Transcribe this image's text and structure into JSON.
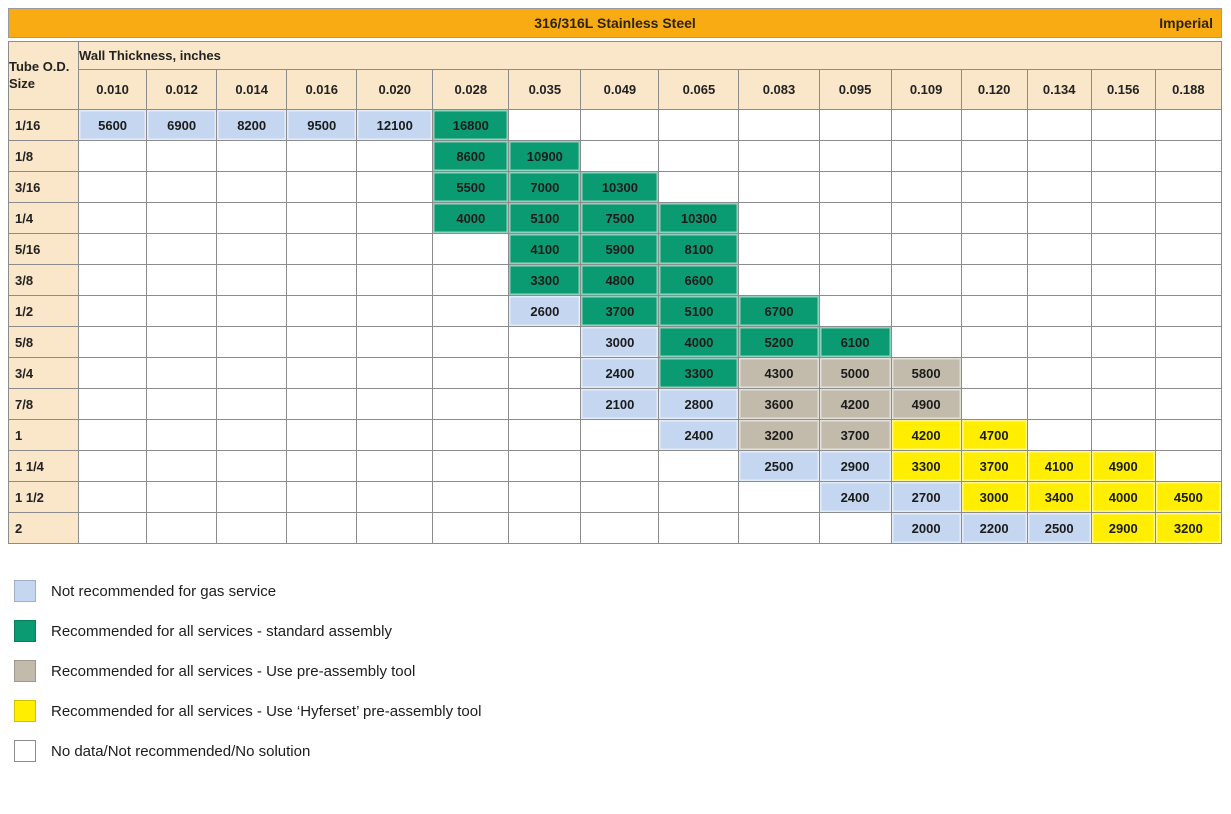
{
  "chart_data": {
    "type": "table",
    "title": "316/316L Stainless Steel",
    "units_label": "Imperial",
    "corner_label": "Tube O.D. Size",
    "column_group_label": "Wall Thickness, inches",
    "columns": [
      "0.010",
      "0.012",
      "0.014",
      "0.016",
      "0.020",
      "0.028",
      "0.035",
      "0.049",
      "0.065",
      "0.083",
      "0.095",
      "0.109",
      "0.120",
      "0.134",
      "0.156",
      "0.188"
    ],
    "rows": [
      {
        "size": "1/16",
        "cells": [
          [
            "5600",
            "gas"
          ],
          [
            "6900",
            "gas"
          ],
          [
            "8200",
            "gas"
          ],
          [
            "9500",
            "gas"
          ],
          [
            "12100",
            "gas"
          ],
          [
            "16800",
            "std"
          ],
          null,
          null,
          null,
          null,
          null,
          null,
          null,
          null,
          null,
          null
        ]
      },
      {
        "size": "1/8",
        "cells": [
          null,
          null,
          null,
          null,
          null,
          [
            "8600",
            "std"
          ],
          [
            "10900",
            "std"
          ],
          null,
          null,
          null,
          null,
          null,
          null,
          null,
          null,
          null
        ]
      },
      {
        "size": "3/16",
        "cells": [
          null,
          null,
          null,
          null,
          null,
          [
            "5500",
            "std"
          ],
          [
            "7000",
            "std"
          ],
          [
            "10300",
            "std"
          ],
          null,
          null,
          null,
          null,
          null,
          null,
          null,
          null
        ]
      },
      {
        "size": "1/4",
        "cells": [
          null,
          null,
          null,
          null,
          null,
          [
            "4000",
            "std"
          ],
          [
            "5100",
            "std"
          ],
          [
            "7500",
            "std"
          ],
          [
            "10300",
            "std"
          ],
          null,
          null,
          null,
          null,
          null,
          null,
          null
        ]
      },
      {
        "size": "5/16",
        "cells": [
          null,
          null,
          null,
          null,
          null,
          null,
          [
            "4100",
            "std"
          ],
          [
            "5900",
            "std"
          ],
          [
            "8100",
            "std"
          ],
          null,
          null,
          null,
          null,
          null,
          null,
          null
        ]
      },
      {
        "size": "3/8",
        "cells": [
          null,
          null,
          null,
          null,
          null,
          null,
          [
            "3300",
            "std"
          ],
          [
            "4800",
            "std"
          ],
          [
            "6600",
            "std"
          ],
          null,
          null,
          null,
          null,
          null,
          null,
          null
        ]
      },
      {
        "size": "1/2",
        "cells": [
          null,
          null,
          null,
          null,
          null,
          null,
          [
            "2600",
            "gas"
          ],
          [
            "3700",
            "std"
          ],
          [
            "5100",
            "std"
          ],
          [
            "6700",
            "std"
          ],
          null,
          null,
          null,
          null,
          null,
          null
        ]
      },
      {
        "size": "5/8",
        "cells": [
          null,
          null,
          null,
          null,
          null,
          null,
          null,
          [
            "3000",
            "gas"
          ],
          [
            "4000",
            "std"
          ],
          [
            "5200",
            "std"
          ],
          [
            "6100",
            "std"
          ],
          null,
          null,
          null,
          null,
          null
        ]
      },
      {
        "size": "3/4",
        "cells": [
          null,
          null,
          null,
          null,
          null,
          null,
          null,
          [
            "2400",
            "gas"
          ],
          [
            "3300",
            "std"
          ],
          [
            "4300",
            "pre"
          ],
          [
            "5000",
            "pre"
          ],
          [
            "5800",
            "pre"
          ],
          null,
          null,
          null,
          null
        ]
      },
      {
        "size": "7/8",
        "cells": [
          null,
          null,
          null,
          null,
          null,
          null,
          null,
          [
            "2100",
            "gas"
          ],
          [
            "2800",
            "gas"
          ],
          [
            "3600",
            "pre"
          ],
          [
            "4200",
            "pre"
          ],
          [
            "4900",
            "pre"
          ],
          null,
          null,
          null,
          null
        ]
      },
      {
        "size": "1",
        "cells": [
          null,
          null,
          null,
          null,
          null,
          null,
          null,
          null,
          [
            "2400",
            "gas"
          ],
          [
            "3200",
            "pre"
          ],
          [
            "3700",
            "pre"
          ],
          [
            "4200",
            "hyf"
          ],
          [
            "4700",
            "hyf"
          ],
          null,
          null,
          null
        ]
      },
      {
        "size": "1 1/4",
        "cells": [
          null,
          null,
          null,
          null,
          null,
          null,
          null,
          null,
          null,
          [
            "2500",
            "gas"
          ],
          [
            "2900",
            "gas"
          ],
          [
            "3300",
            "hyf"
          ],
          [
            "3700",
            "hyf"
          ],
          [
            "4100",
            "hyf"
          ],
          [
            "4900",
            "hyf"
          ],
          null
        ]
      },
      {
        "size": "1 1/2",
        "cells": [
          null,
          null,
          null,
          null,
          null,
          null,
          null,
          null,
          null,
          null,
          [
            "2400",
            "gas"
          ],
          [
            "2700",
            "gas"
          ],
          [
            "3000",
            "hyf"
          ],
          [
            "3400",
            "hyf"
          ],
          [
            "4000",
            "hyf"
          ],
          [
            "4500",
            "hyf"
          ]
        ]
      },
      {
        "size": "2",
        "cells": [
          null,
          null,
          null,
          null,
          null,
          null,
          null,
          null,
          null,
          null,
          null,
          [
            "2000",
            "gas"
          ],
          [
            "2200",
            "gas"
          ],
          [
            "2500",
            "gas"
          ],
          [
            "2900",
            "hyf"
          ],
          [
            "3200",
            "hyf"
          ]
        ]
      }
    ]
  },
  "legend": {
    "items": [
      {
        "key": "gas",
        "label": "Not recommended for gas service"
      },
      {
        "key": "std",
        "label": "Recommended for all services - standard assembly"
      },
      {
        "key": "pre",
        "label": "Recommended for all services - Use pre-assembly tool"
      },
      {
        "key": "hyf",
        "label": "Recommended for all services - Use ‘Hyferset’ pre-assembly tool"
      },
      {
        "key": "none",
        "label": "No data/Not recommended/No solution"
      }
    ]
  },
  "colors": {
    "title_bar": "#F8AB12",
    "header_bg": "#FAE7C9",
    "grid_line": "#8C8C8C",
    "gas": "#C4D6F0",
    "std": "#0A9B72",
    "pre": "#C2BAAB",
    "hyf": "#FFEE00",
    "none": "#FFFFFF"
  }
}
